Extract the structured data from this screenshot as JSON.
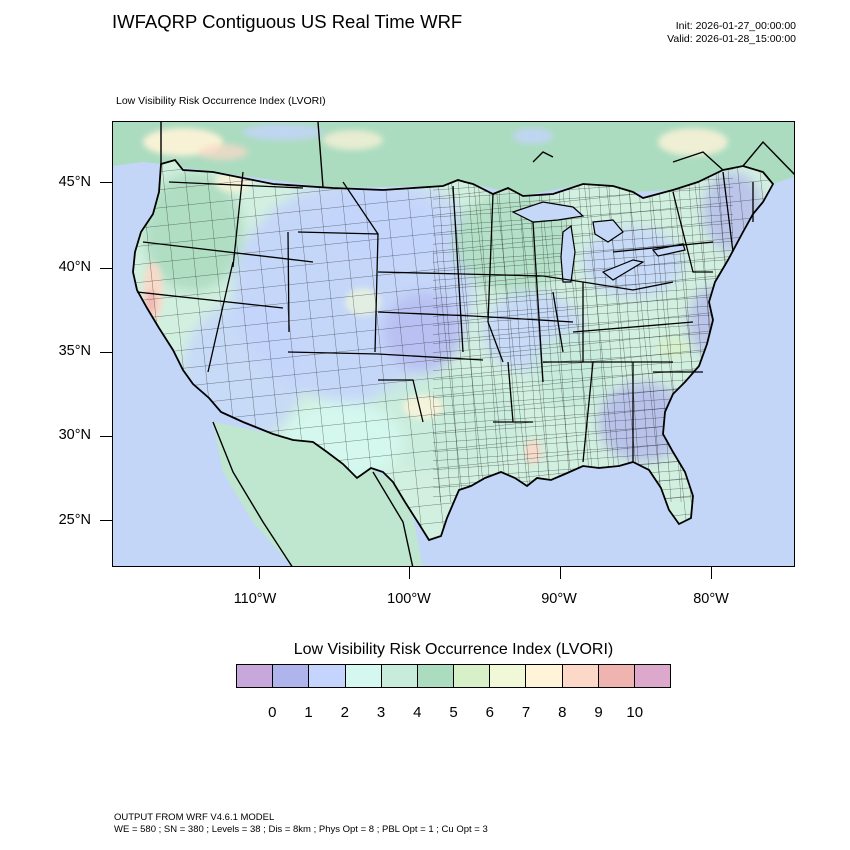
{
  "header": {
    "title": "IWFAQRP Contiguous US Real Time WRF",
    "init": "Init: 2026-01-27_00:00:00",
    "valid": "Valid: 2026-01-28_15:00:00"
  },
  "map": {
    "subtitle": "Low Visibility Risk Occurrence Index   (LVORI)",
    "lat_labels": [
      "45°N",
      "40°N",
      "35°N",
      "30°N",
      "25°N"
    ],
    "lon_labels": [
      "110°W",
      "100°W",
      "90°W",
      "80°W"
    ],
    "colors": {
      "ocean": "#c4d6f8",
      "land_base": "#d2f0e0",
      "water_lake": "#c6d8f8",
      "outline": "#000000"
    }
  },
  "colorbar": {
    "title": "Low Visibility Risk Occurrence Index  (LVORI)",
    "colors": [
      "#c8a8dc",
      "#b0b4ec",
      "#c4d4fc",
      "#d4f8f0",
      "#c8ecdc",
      "#acdcc0",
      "#d8f0c8",
      "#f0f8d8",
      "#fff4d8",
      "#fcd8c8",
      "#f0b4b0",
      "#dca8cc"
    ],
    "labels": [
      "0",
      "1",
      "2",
      "3",
      "4",
      "5",
      "6",
      "7",
      "8",
      "9",
      "10"
    ]
  },
  "footer": {
    "line1": "OUTPUT FROM WRF V4.6.1 MODEL",
    "line2": "WE = 580 ; SN = 380 ; Levels = 38 ; Dis = 8km ; Phys Opt = 8 ; PBL Opt = 1 ; Cu Opt = 3"
  }
}
